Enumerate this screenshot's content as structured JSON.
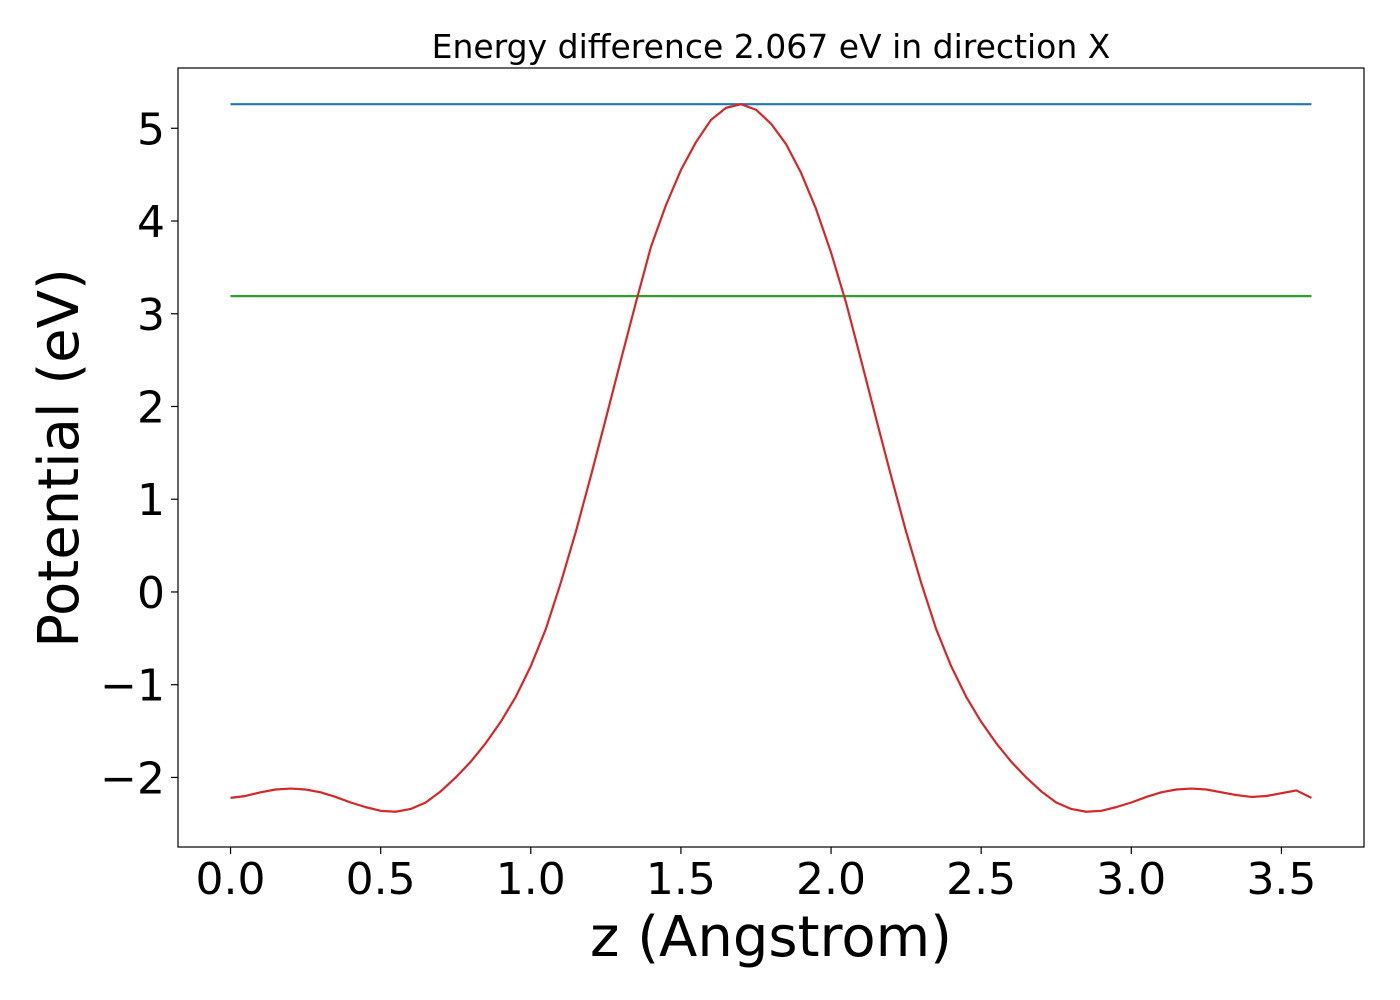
{
  "chart_data": {
    "type": "line",
    "title": "Energy difference 2.067 eV in direction X",
    "xlabel": "z (Angstrom)",
    "ylabel": "Potential (eV)",
    "xlim": [
      -0.175,
      3.775
    ],
    "ylim": [
      -2.75,
      5.65
    ],
    "x_ticks": [
      0.0,
      0.5,
      1.0,
      1.5,
      2.0,
      2.5,
      3.0,
      3.5
    ],
    "x_tick_labels": [
      "0.0",
      "0.5",
      "1.0",
      "1.5",
      "2.0",
      "2.5",
      "3.0",
      "3.5"
    ],
    "y_ticks": [
      -2,
      -1,
      0,
      1,
      2,
      3,
      4,
      5
    ],
    "y_tick_labels": [
      "−2",
      "−1",
      "0",
      "1",
      "2",
      "3",
      "4",
      "5"
    ],
    "grid": false,
    "series": [
      {
        "color": "#1f77b4",
        "x": [
          0.0,
          3.6
        ],
        "y": [
          5.26,
          5.26
        ]
      },
      {
        "color": "#2ca02c",
        "x": [
          0.0,
          3.6
        ],
        "y": [
          3.19,
          3.19
        ]
      },
      {
        "color": "#d62728",
        "x": [
          0.0,
          0.05,
          0.1,
          0.15,
          0.2,
          0.25,
          0.3,
          0.35,
          0.4,
          0.45,
          0.5,
          0.55,
          0.6,
          0.65,
          0.7,
          0.75,
          0.8,
          0.85,
          0.9,
          0.95,
          1.0,
          1.05,
          1.1,
          1.15,
          1.2,
          1.25,
          1.3,
          1.35,
          1.4,
          1.45,
          1.5,
          1.55,
          1.6,
          1.65,
          1.7,
          1.75,
          1.8,
          1.85,
          1.9,
          1.95,
          2.0,
          2.05,
          2.1,
          2.15,
          2.2,
          2.25,
          2.3,
          2.35,
          2.4,
          2.45,
          2.5,
          2.55,
          2.6,
          2.65,
          2.7,
          2.75,
          2.8,
          2.85,
          2.9,
          2.95,
          3.0,
          3.05,
          3.1,
          3.15,
          3.2,
          3.25,
          3.3,
          3.35,
          3.4,
          3.45,
          3.5,
          3.55,
          3.6
        ],
        "y": [
          -2.22,
          -2.2,
          -2.16,
          -2.13,
          -2.12,
          -2.13,
          -2.16,
          -2.21,
          -2.27,
          -2.32,
          -2.36,
          -2.37,
          -2.34,
          -2.27,
          -2.15,
          -2.0,
          -1.83,
          -1.63,
          -1.4,
          -1.13,
          -0.8,
          -0.4,
          0.1,
          0.65,
          1.25,
          1.87,
          2.5,
          3.12,
          3.72,
          4.17,
          4.55,
          4.85,
          5.09,
          5.22,
          5.26,
          5.2,
          5.05,
          4.83,
          4.52,
          4.13,
          3.66,
          3.12,
          2.5,
          1.87,
          1.25,
          0.65,
          0.1,
          -0.4,
          -0.8,
          -1.13,
          -1.4,
          -1.63,
          -1.83,
          -2.0,
          -2.15,
          -2.27,
          -2.34,
          -2.37,
          -2.36,
          -2.32,
          -2.27,
          -2.21,
          -2.16,
          -2.13,
          -2.12,
          -2.13,
          -2.16,
          -2.19,
          -2.21,
          -2.2,
          -2.17,
          -2.14,
          -2.22
        ]
      }
    ]
  }
}
